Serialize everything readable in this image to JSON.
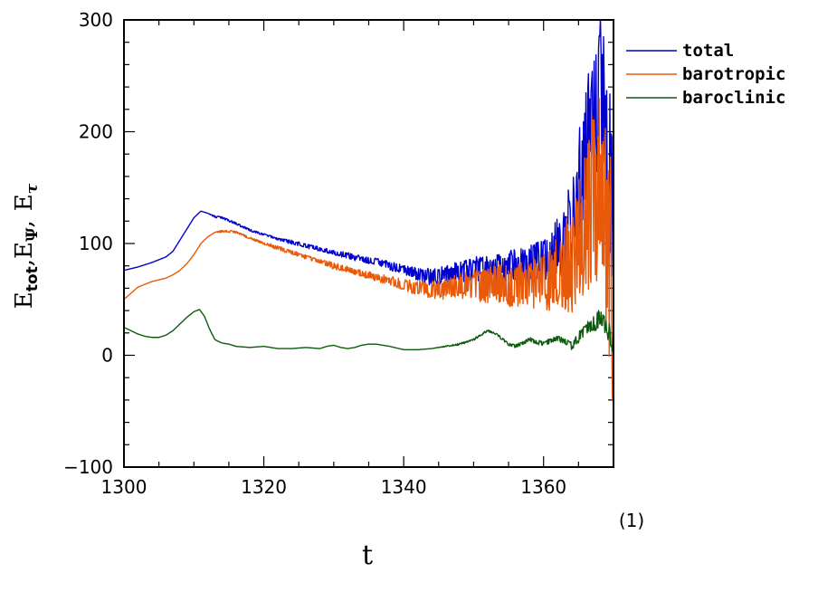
{
  "chart_data": {
    "type": "line",
    "xlabel": "t",
    "ylabel": {
      "base1": "E",
      "sub1": "tot",
      "sep1": ",",
      "base2": "E",
      "sub2": "Ψ",
      "sep2": ",",
      "base3": "E",
      "sub3": "τ"
    },
    "panel_label": "(1)",
    "xlim": [
      1300,
      1370
    ],
    "ylim": [
      -100,
      300
    ],
    "xticks": [
      1300,
      1320,
      1340,
      1360
    ],
    "yticks": [
      -100,
      0,
      100,
      200,
      300
    ],
    "xtick_labels": [
      "1300",
      "1320",
      "1340",
      "1360"
    ],
    "ytick_labels": [
      "−100",
      "0",
      "100",
      "200",
      "300"
    ],
    "legend_position": "right-top-outside",
    "series": [
      {
        "name": "total",
        "color": "#0000cc",
        "x": [
          1300,
          1302,
          1304,
          1306,
          1307,
          1308,
          1309,
          1310,
          1311,
          1312,
          1313,
          1314,
          1316,
          1318,
          1320,
          1322,
          1324,
          1326,
          1328,
          1330,
          1332,
          1334,
          1336,
          1338,
          1340,
          1342,
          1344,
          1346,
          1348,
          1350,
          1352,
          1354,
          1356,
          1358,
          1360,
          1361,
          1362,
          1363,
          1364,
          1365,
          1366,
          1367,
          1368,
          1369,
          1370
        ],
        "y": [
          76,
          79,
          83,
          88,
          93,
          103,
          113,
          123,
          129,
          127,
          124,
          123,
          118,
          112,
          108,
          104,
          101,
          98,
          95,
          92,
          89,
          86,
          84,
          80,
          77,
          72,
          70,
          72,
          74,
          77,
          78,
          79,
          80,
          82,
          84,
          88,
          95,
          105,
          118,
          150,
          180,
          215,
          240,
          195,
          150
        ],
        "noise": [
          0,
          0,
          0,
          0,
          0,
          0,
          0,
          0,
          0,
          0,
          1,
          1,
          1,
          1,
          1,
          1,
          2,
          2,
          2,
          2,
          3,
          3,
          3,
          4,
          4,
          6,
          8,
          9,
          10,
          11,
          12,
          13,
          15,
          17,
          20,
          24,
          28,
          33,
          40,
          48,
          55,
          62,
          70,
          80,
          90
        ]
      },
      {
        "name": "barotropic",
        "color": "#e85a0a",
        "x": [
          1300,
          1302,
          1304,
          1306,
          1307,
          1308,
          1309,
          1310,
          1311,
          1312,
          1313,
          1314,
          1315,
          1316,
          1318,
          1320,
          1322,
          1324,
          1326,
          1328,
          1330,
          1332,
          1334,
          1336,
          1338,
          1340,
          1342,
          1344,
          1346,
          1348,
          1350,
          1352,
          1354,
          1356,
          1358,
          1360,
          1361,
          1362,
          1363,
          1364,
          1365,
          1366,
          1367,
          1368,
          1369,
          1370
        ],
        "y": [
          50,
          61,
          66,
          69,
          72,
          76,
          82,
          90,
          100,
          106,
          110,
          111,
          111,
          110,
          105,
          100,
          96,
          92,
          88,
          84,
          80,
          77,
          73,
          70,
          67,
          63,
          60,
          58,
          60,
          62,
          63,
          64,
          63,
          62,
          64,
          66,
          68,
          74,
          80,
          88,
          105,
          120,
          140,
          150,
          110,
          60
        ],
        "noise": [
          0,
          0,
          0,
          0,
          0,
          0,
          0,
          0,
          0,
          0,
          0,
          1,
          1,
          1,
          1,
          1,
          2,
          2,
          2,
          2,
          3,
          3,
          3,
          4,
          4,
          5,
          7,
          8,
          10,
          12,
          14,
          17,
          18,
          20,
          22,
          25,
          28,
          32,
          40,
          50,
          60,
          72,
          85,
          95,
          100,
          110
        ]
      },
      {
        "name": "baroclinic",
        "color": "#0d5a0d",
        "x": [
          1300,
          1301,
          1302,
          1303,
          1304,
          1305,
          1306,
          1307,
          1308,
          1309,
          1310,
          1310.8,
          1311.5,
          1312.2,
          1313,
          1314,
          1315,
          1316,
          1318,
          1320,
          1322,
          1324,
          1326,
          1328,
          1329,
          1330,
          1331,
          1332,
          1333,
          1334,
          1335,
          1336,
          1338,
          1340,
          1342,
          1344,
          1346,
          1348,
          1350,
          1351,
          1352,
          1353,
          1354,
          1355,
          1356,
          1357,
          1358,
          1359,
          1360,
          1361,
          1362,
          1363,
          1364,
          1365,
          1366,
          1367,
          1368,
          1369,
          1370
        ],
        "y": [
          25,
          22,
          19,
          17,
          16,
          16,
          18,
          22,
          28,
          34,
          39,
          41,
          35,
          24,
          14,
          11,
          10,
          8,
          7,
          8,
          6,
          6,
          7,
          6,
          8,
          9,
          7,
          6,
          7,
          9,
          10,
          10,
          8,
          5,
          5,
          6,
          8,
          10,
          14,
          18,
          22,
          20,
          15,
          10,
          8,
          11,
          14,
          12,
          10,
          13,
          15,
          12,
          9,
          16,
          22,
          28,
          34,
          26,
          12
        ],
        "noise": [
          0,
          0,
          0,
          0,
          0,
          0,
          0,
          0,
          0,
          0,
          0,
          0,
          0,
          0,
          0,
          0,
          0,
          0,
          0,
          0,
          0,
          0,
          0,
          0,
          0,
          0,
          0,
          0,
          0,
          0,
          0,
          0,
          0,
          0,
          0,
          0,
          0.5,
          0.8,
          1,
          1,
          1,
          1,
          1.2,
          1.2,
          1.5,
          1.5,
          2,
          2,
          2,
          2.5,
          3,
          3,
          4,
          5,
          6,
          8,
          9,
          10,
          12
        ]
      }
    ]
  }
}
